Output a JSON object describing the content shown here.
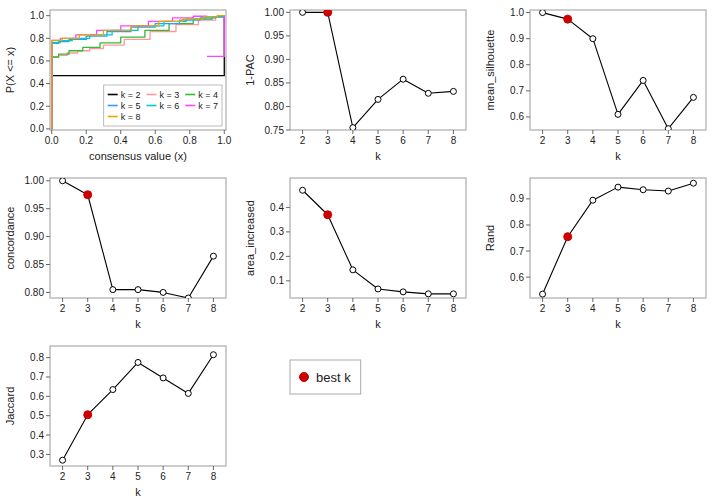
{
  "chart_data": [
    {
      "type": "step",
      "x_label": "consensus value (x)",
      "y_label": "P(X <= x)",
      "xlim": [
        -0.01,
        1.01
      ],
      "ylim": [
        -0.01,
        1.05
      ],
      "xticks": [
        {
          "value": 0.0,
          "label": "0.0"
        },
        0.2,
        0.4,
        0.6,
        0.8,
        {
          "value": 1.0,
          "label": "1.0"
        }
      ],
      "yticks": [
        {
          "value": 0.0,
          "label": "0.0"
        },
        0.2,
        0.4,
        0.6,
        0.8,
        {
          "value": 1.0,
          "label": "1.0"
        }
      ],
      "legend": "lower right",
      "series": [
        {
          "name": "k = 2",
          "color": "#000000",
          "x": [
            0.0,
            0.001,
            0.999,
            1.0
          ],
          "values": [
            0.0,
            0.47,
            0.47,
            1.0
          ]
        },
        {
          "name": "k = 3",
          "color": "#FF9999",
          "x": [
            0.0,
            0.001,
            0.04,
            0.09,
            0.15,
            0.22,
            0.3,
            0.42,
            0.57,
            0.72,
            0.85,
            0.95,
            1.0
          ],
          "values": [
            0.0,
            0.635,
            0.65,
            0.67,
            0.69,
            0.71,
            0.74,
            0.79,
            0.86,
            0.92,
            0.96,
            0.99,
            1.0
          ]
        },
        {
          "name": "k = 4",
          "color": "#33BB33",
          "x": [
            0.0,
            0.001,
            0.04,
            0.1,
            0.18,
            0.28,
            0.4,
            0.54,
            0.68,
            0.82,
            0.93,
            1.0
          ],
          "values": [
            0.0,
            0.635,
            0.66,
            0.69,
            0.72,
            0.76,
            0.81,
            0.87,
            0.93,
            0.97,
            0.99,
            1.0
          ]
        },
        {
          "name": "k = 5",
          "color": "#3399FF",
          "x": [
            0.0,
            0.001,
            0.04,
            0.1,
            0.2,
            0.32,
            0.46,
            0.6,
            0.74,
            0.86,
            0.95,
            1.0
          ],
          "values": [
            0.0,
            0.755,
            0.77,
            0.79,
            0.82,
            0.86,
            0.9,
            0.93,
            0.96,
            0.98,
            0.99,
            1.0
          ]
        },
        {
          "name": "k = 6",
          "color": "#00CCCC",
          "x": [
            0.0,
            0.001,
            0.05,
            0.12,
            0.22,
            0.35,
            0.5,
            0.65,
            0.78,
            0.89,
            0.96,
            1.0
          ],
          "values": [
            0.0,
            0.763,
            0.78,
            0.8,
            0.83,
            0.87,
            0.91,
            0.95,
            0.97,
            0.99,
            1.0,
            1.0
          ]
        },
        {
          "name": "k = 7",
          "color": "#FF44FF",
          "x": [
            0.0,
            0.001,
            0.05,
            0.14,
            0.26,
            0.4,
            0.56,
            0.7,
            0.82,
            0.9,
            null,
            0.9,
            1.0,
            1.0
          ],
          "values": [
            0.0,
            0.782,
            0.8,
            0.83,
            0.87,
            0.91,
            0.95,
            0.98,
            0.995,
            1.0,
            null,
            0.64,
            0.64,
            1.0
          ]
        },
        {
          "name": "k = 8",
          "color": "#DDAA00",
          "x": [
            0.0,
            0.001,
            0.06,
            0.16,
            0.3,
            0.46,
            0.62,
            0.76,
            0.88,
            0.96,
            1.0
          ],
          "values": [
            0.0,
            0.782,
            0.8,
            0.83,
            0.87,
            0.91,
            0.95,
            0.97,
            0.99,
            1.0,
            1.0
          ]
        }
      ]
    },
    {
      "type": "line",
      "x_label": "k",
      "y_label": "1-PAC",
      "x": [
        2,
        3,
        4,
        5,
        6,
        7,
        8
      ],
      "xlim": [
        1.5,
        8.5
      ],
      "xticks": [
        2,
        3,
        4,
        5,
        6,
        7,
        8
      ],
      "ylim": [
        0.75,
        1.005
      ],
      "yticks": [
        0.75,
        {
          "value": 0.8,
          "label": "0.80"
        },
        0.85,
        {
          "value": 0.9,
          "label": "0.90"
        },
        0.95,
        {
          "value": 1.0,
          "label": "1.00"
        }
      ],
      "series": [
        {
          "color": "#000000",
          "marker": "circle",
          "values": [
            1.0,
            1.0,
            0.755,
            0.815,
            0.858,
            0.828,
            0.832
          ]
        },
        {
          "name": "best k",
          "type": "scatter",
          "color": "#CC0000",
          "x": [
            3
          ],
          "values": [
            1.0
          ]
        }
      ]
    },
    {
      "type": "line",
      "x_label": "k",
      "y_label": "mean_silhouette",
      "x": [
        2,
        3,
        4,
        5,
        6,
        7,
        8
      ],
      "xlim": [
        1.5,
        8.5
      ],
      "xticks": [
        2,
        3,
        4,
        5,
        6,
        7,
        8
      ],
      "ylim": [
        0.55,
        1.01
      ],
      "yticks": [
        0.6,
        0.7,
        0.8,
        0.9,
        {
          "value": 1.0,
          "label": "1.0"
        }
      ],
      "series": [
        {
          "color": "#000000",
          "marker": "circle",
          "values": [
            1.0,
            0.975,
            0.9,
            0.61,
            0.74,
            0.555,
            0.675
          ]
        },
        {
          "type": "scatter",
          "color": "#CC0000",
          "x": [
            3
          ],
          "values": [
            0.975
          ]
        }
      ]
    },
    {
      "type": "line",
      "x_label": "k",
      "y_label": "concordance",
      "x": [
        2,
        3,
        4,
        5,
        6,
        7,
        8
      ],
      "xlim": [
        1.5,
        8.5
      ],
      "xticks": [
        2,
        3,
        4,
        5,
        6,
        7,
        8
      ],
      "ylim": [
        0.79,
        1.005
      ],
      "yticks": [
        {
          "value": 0.8,
          "label": "0.80"
        },
        0.85,
        {
          "value": 0.9,
          "label": "0.90"
        },
        0.95,
        {
          "value": 1.0,
          "label": "1.00"
        }
      ],
      "series": [
        {
          "color": "#000000",
          "marker": "circle",
          "values": [
            1.0,
            0.975,
            0.805,
            0.805,
            0.8,
            0.79,
            0.865
          ]
        },
        {
          "type": "scatter",
          "color": "#CC0000",
          "x": [
            3
          ],
          "values": [
            0.975
          ]
        }
      ]
    },
    {
      "type": "line",
      "x_label": "k",
      "y_label": "area_increased",
      "x": [
        2,
        3,
        4,
        5,
        6,
        7,
        8
      ],
      "xlim": [
        1.5,
        8.5
      ],
      "xticks": [
        2,
        3,
        4,
        5,
        6,
        7,
        8
      ],
      "ylim": [
        0.03,
        0.52
      ],
      "yticks": [
        0.1,
        0.2,
        0.3,
        0.4
      ],
      "series": [
        {
          "color": "#000000",
          "marker": "circle",
          "values": [
            0.47,
            0.37,
            0.145,
            0.067,
            0.055,
            0.047,
            0.047
          ]
        },
        {
          "type": "scatter",
          "color": "#CC0000",
          "x": [
            3
          ],
          "values": [
            0.37
          ]
        }
      ]
    },
    {
      "type": "line",
      "x_label": "k",
      "y_label": "Rand",
      "x": [
        2,
        3,
        4,
        5,
        6,
        7,
        8
      ],
      "xlim": [
        1.5,
        8.5
      ],
      "xticks": [
        2,
        3,
        4,
        5,
        6,
        7,
        8
      ],
      "ylim": [
        0.52,
        0.98
      ],
      "yticks": [
        0.6,
        0.7,
        0.8,
        0.9
      ],
      "series": [
        {
          "color": "#000000",
          "marker": "circle",
          "values": [
            0.535,
            0.755,
            0.895,
            0.945,
            0.935,
            0.93,
            0.96
          ]
        },
        {
          "type": "scatter",
          "color": "#CC0000",
          "x": [
            3
          ],
          "values": [
            0.755
          ]
        }
      ]
    },
    {
      "type": "line",
      "x_label": "k",
      "y_label": "Jaccard",
      "x": [
        2,
        3,
        4,
        5,
        6,
        7,
        8
      ],
      "xlim": [
        1.5,
        8.5
      ],
      "xticks": [
        2,
        3,
        4,
        5,
        6,
        7,
        8
      ],
      "ylim": [
        0.24,
        0.86
      ],
      "yticks": [
        0.3,
        0.4,
        0.5,
        0.6,
        0.7,
        0.8
      ],
      "series": [
        {
          "color": "#000000",
          "marker": "circle",
          "values": [
            0.27,
            0.505,
            0.635,
            0.775,
            0.695,
            0.615,
            0.815
          ]
        },
        {
          "type": "scatter",
          "color": "#CC0000",
          "x": [
            3
          ],
          "values": [
            0.505
          ]
        }
      ]
    }
  ]
}
